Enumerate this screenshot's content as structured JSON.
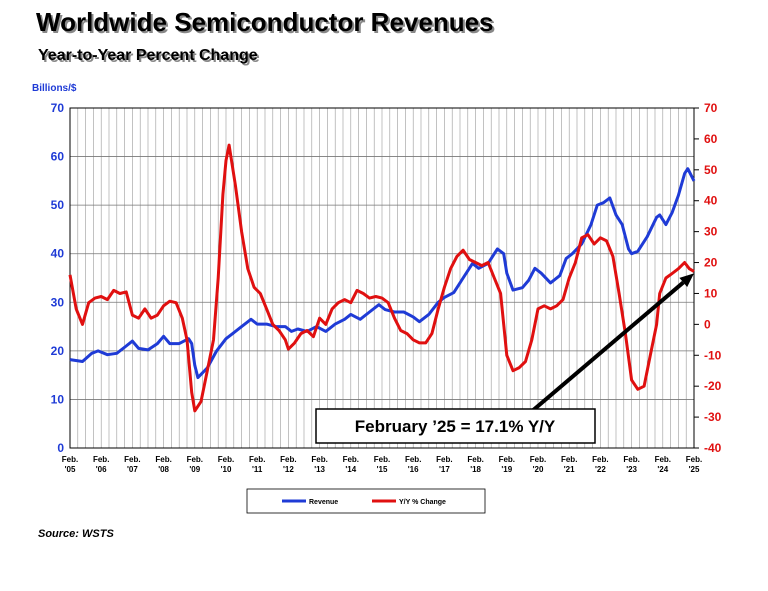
{
  "chart_data": {
    "type": "line",
    "title": "Worldwide Semiconductor Revenues",
    "subtitle": "Year-to-Year Percent Change",
    "ylabel": "Billions/$",
    "ylim": [
      0,
      70
    ],
    "y2lim": [
      -40,
      70
    ],
    "yticks": [
      0,
      10,
      20,
      30,
      40,
      50,
      60,
      70
    ],
    "y2ticks": [
      -40,
      -30,
      -20,
      -10,
      0,
      10,
      20,
      30,
      40,
      50,
      60,
      70
    ],
    "xlim": [
      2005.1,
      2025.1
    ],
    "x_ticks": [
      {
        "x": 2005.1,
        "top": "Feb.",
        "bottom": "'05"
      },
      {
        "x": 2006.1,
        "top": "Feb.",
        "bottom": "'06"
      },
      {
        "x": 2007.1,
        "top": "Feb.",
        "bottom": "'07"
      },
      {
        "x": 2008.1,
        "top": "Feb.",
        "bottom": "'08"
      },
      {
        "x": 2009.1,
        "top": "Feb.",
        "bottom": "'09"
      },
      {
        "x": 2010.1,
        "top": "Feb.",
        "bottom": "'10"
      },
      {
        "x": 2011.1,
        "top": "Feb.",
        "bottom": "'11"
      },
      {
        "x": 2012.1,
        "top": "Feb.",
        "bottom": "'12"
      },
      {
        "x": 2013.1,
        "top": "Feb.",
        "bottom": "'13"
      },
      {
        "x": 2014.1,
        "top": "Feb.",
        "bottom": "'14"
      },
      {
        "x": 2015.1,
        "top": "Feb.",
        "bottom": "'15"
      },
      {
        "x": 2016.1,
        "top": "Feb.",
        "bottom": "'16"
      },
      {
        "x": 2017.1,
        "top": "Feb.",
        "bottom": "'17"
      },
      {
        "x": 2018.1,
        "top": "Feb.",
        "bottom": "'18"
      },
      {
        "x": 2019.1,
        "top": "Feb.",
        "bottom": "'19"
      },
      {
        "x": 2020.1,
        "top": "Feb.",
        "bottom": "'20"
      },
      {
        "x": 2021.1,
        "top": "Feb.",
        "bottom": "'21"
      },
      {
        "x": 2022.1,
        "top": "Feb.",
        "bottom": "'22"
      },
      {
        "x": 2023.1,
        "top": "Feb.",
        "bottom": "'23"
      },
      {
        "x": 2024.1,
        "top": "Feb.",
        "bottom": "'24"
      },
      {
        "x": 2025.1,
        "top": "Feb.",
        "bottom": "'25"
      }
    ],
    "grid": true,
    "legend_position": "bottom-center",
    "series": [
      {
        "name": "Revenue",
        "axis": "left",
        "color": "#1f3bd6",
        "points": [
          [
            2005.1,
            18.2
          ],
          [
            2005.5,
            17.8
          ],
          [
            2005.8,
            19.5
          ],
          [
            2006.0,
            20.0
          ],
          [
            2006.3,
            19.2
          ],
          [
            2006.6,
            19.5
          ],
          [
            2006.9,
            21.0
          ],
          [
            2007.1,
            22.0
          ],
          [
            2007.3,
            20.5
          ],
          [
            2007.6,
            20.2
          ],
          [
            2007.9,
            21.5
          ],
          [
            2008.1,
            23.0
          ],
          [
            2008.3,
            21.5
          ],
          [
            2008.6,
            21.5
          ],
          [
            2008.9,
            22.5
          ],
          [
            2009.0,
            21.5
          ],
          [
            2009.1,
            17.0
          ],
          [
            2009.2,
            14.5
          ],
          [
            2009.5,
            16.5
          ],
          [
            2009.8,
            20.0
          ],
          [
            2010.1,
            22.5
          ],
          [
            2010.3,
            23.5
          ],
          [
            2010.6,
            25.0
          ],
          [
            2010.9,
            26.5
          ],
          [
            2011.1,
            25.5
          ],
          [
            2011.4,
            25.5
          ],
          [
            2011.7,
            25.0
          ],
          [
            2012.0,
            25.0
          ],
          [
            2012.2,
            24.0
          ],
          [
            2012.4,
            24.5
          ],
          [
            2012.7,
            24.0
          ],
          [
            2013.0,
            25.0
          ],
          [
            2013.3,
            24.0
          ],
          [
            2013.6,
            25.5
          ],
          [
            2013.9,
            26.5
          ],
          [
            2014.1,
            27.5
          ],
          [
            2014.4,
            26.5
          ],
          [
            2014.7,
            28.0
          ],
          [
            2015.0,
            29.5
          ],
          [
            2015.2,
            28.5
          ],
          [
            2015.5,
            28.0
          ],
          [
            2015.8,
            28.0
          ],
          [
            2016.1,
            27.0
          ],
          [
            2016.3,
            26.0
          ],
          [
            2016.6,
            27.5
          ],
          [
            2016.9,
            30.0
          ],
          [
            2017.1,
            31.0
          ],
          [
            2017.4,
            32.0
          ],
          [
            2017.7,
            35.0
          ],
          [
            2018.0,
            38.0
          ],
          [
            2018.2,
            37.0
          ],
          [
            2018.5,
            38.0
          ],
          [
            2018.8,
            41.0
          ],
          [
            2019.0,
            40.0
          ],
          [
            2019.1,
            36.0
          ],
          [
            2019.3,
            32.5
          ],
          [
            2019.6,
            33.0
          ],
          [
            2019.8,
            34.5
          ],
          [
            2020.0,
            37.0
          ],
          [
            2020.2,
            36.0
          ],
          [
            2020.5,
            34.0
          ],
          [
            2020.8,
            35.5
          ],
          [
            2021.0,
            39.0
          ],
          [
            2021.2,
            40.0
          ],
          [
            2021.5,
            42.0
          ],
          [
            2021.8,
            46.0
          ],
          [
            2022.0,
            50.0
          ],
          [
            2022.2,
            50.5
          ],
          [
            2022.4,
            51.5
          ],
          [
            2022.6,
            48.0
          ],
          [
            2022.8,
            46.0
          ],
          [
            2023.0,
            41.0
          ],
          [
            2023.1,
            40.0
          ],
          [
            2023.3,
            40.5
          ],
          [
            2023.6,
            43.5
          ],
          [
            2023.9,
            47.5
          ],
          [
            2024.0,
            48.0
          ],
          [
            2024.2,
            46.0
          ],
          [
            2024.4,
            48.5
          ],
          [
            2024.6,
            52.0
          ],
          [
            2024.8,
            56.5
          ],
          [
            2024.9,
            57.5
          ],
          [
            2025.1,
            55.0
          ]
        ]
      },
      {
        "name": "Y/Y % Change",
        "axis": "right",
        "color": "#e01010",
        "points": [
          [
            2005.1,
            16.0
          ],
          [
            2005.3,
            5.0
          ],
          [
            2005.5,
            0.0
          ],
          [
            2005.7,
            7.0
          ],
          [
            2005.9,
            8.5
          ],
          [
            2006.1,
            9.0
          ],
          [
            2006.3,
            8.0
          ],
          [
            2006.5,
            11.0
          ],
          [
            2006.7,
            10.0
          ],
          [
            2006.9,
            10.5
          ],
          [
            2007.1,
            3.0
          ],
          [
            2007.3,
            2.0
          ],
          [
            2007.5,
            5.0
          ],
          [
            2007.7,
            2.0
          ],
          [
            2007.9,
            3.0
          ],
          [
            2008.1,
            6.0
          ],
          [
            2008.3,
            7.5
          ],
          [
            2008.5,
            7.0
          ],
          [
            2008.7,
            2.0
          ],
          [
            2008.85,
            -5.0
          ],
          [
            2009.0,
            -22.0
          ],
          [
            2009.1,
            -28.0
          ],
          [
            2009.3,
            -25.0
          ],
          [
            2009.5,
            -15.0
          ],
          [
            2009.7,
            -5.0
          ],
          [
            2009.85,
            15.0
          ],
          [
            2010.0,
            42.0
          ],
          [
            2010.1,
            53.0
          ],
          [
            2010.2,
            58.0
          ],
          [
            2010.4,
            45.0
          ],
          [
            2010.6,
            30.0
          ],
          [
            2010.8,
            18.0
          ],
          [
            2011.0,
            12.0
          ],
          [
            2011.2,
            10.0
          ],
          [
            2011.4,
            5.0
          ],
          [
            2011.6,
            0.0
          ],
          [
            2011.8,
            -2.0
          ],
          [
            2012.0,
            -5.0
          ],
          [
            2012.1,
            -8.0
          ],
          [
            2012.3,
            -6.0
          ],
          [
            2012.5,
            -3.0
          ],
          [
            2012.7,
            -2.0
          ],
          [
            2012.9,
            -4.0
          ],
          [
            2013.1,
            2.0
          ],
          [
            2013.3,
            0.0
          ],
          [
            2013.5,
            5.0
          ],
          [
            2013.7,
            7.0
          ],
          [
            2013.9,
            8.0
          ],
          [
            2014.1,
            7.0
          ],
          [
            2014.3,
            11.0
          ],
          [
            2014.5,
            10.0
          ],
          [
            2014.7,
            8.5
          ],
          [
            2014.9,
            9.0
          ],
          [
            2015.1,
            8.5
          ],
          [
            2015.3,
            7.0
          ],
          [
            2015.5,
            2.0
          ],
          [
            2015.7,
            -2.0
          ],
          [
            2015.9,
            -3.0
          ],
          [
            2016.1,
            -5.0
          ],
          [
            2016.3,
            -6.0
          ],
          [
            2016.5,
            -6.0
          ],
          [
            2016.7,
            -3.0
          ],
          [
            2016.9,
            5.0
          ],
          [
            2017.1,
            12.0
          ],
          [
            2017.3,
            18.0
          ],
          [
            2017.5,
            22.0
          ],
          [
            2017.7,
            24.0
          ],
          [
            2017.9,
            21.0
          ],
          [
            2018.1,
            20.0
          ],
          [
            2018.3,
            19.0
          ],
          [
            2018.5,
            20.0
          ],
          [
            2018.7,
            15.0
          ],
          [
            2018.9,
            10.0
          ],
          [
            2019.0,
            0.0
          ],
          [
            2019.1,
            -10.0
          ],
          [
            2019.3,
            -15.0
          ],
          [
            2019.5,
            -14.0
          ],
          [
            2019.7,
            -12.0
          ],
          [
            2019.9,
            -5.0
          ],
          [
            2020.1,
            5.0
          ],
          [
            2020.3,
            6.0
          ],
          [
            2020.5,
            5.0
          ],
          [
            2020.7,
            6.0
          ],
          [
            2020.9,
            8.0
          ],
          [
            2021.1,
            15.0
          ],
          [
            2021.3,
            20.0
          ],
          [
            2021.5,
            28.0
          ],
          [
            2021.7,
            29.0
          ],
          [
            2021.9,
            26.0
          ],
          [
            2022.1,
            28.0
          ],
          [
            2022.3,
            27.0
          ],
          [
            2022.5,
            22.0
          ],
          [
            2022.7,
            10.0
          ],
          [
            2022.9,
            -3.0
          ],
          [
            2023.1,
            -18.0
          ],
          [
            2023.3,
            -21.0
          ],
          [
            2023.5,
            -20.0
          ],
          [
            2023.7,
            -10.0
          ],
          [
            2023.9,
            0.0
          ],
          [
            2024.0,
            10.0
          ],
          [
            2024.2,
            15.0
          ],
          [
            2024.4,
            16.5
          ],
          [
            2024.6,
            18.0
          ],
          [
            2024.8,
            20.0
          ],
          [
            2024.95,
            18.0
          ],
          [
            2025.1,
            17.1
          ]
        ]
      }
    ],
    "annotation": {
      "text": "February ’25 = 17.1% Y/Y",
      "arrow_from": [
        2019.1,
        -35
      ],
      "arrow_to": [
        2025.1,
        16.5
      ]
    }
  },
  "source": "Source: WSTS"
}
